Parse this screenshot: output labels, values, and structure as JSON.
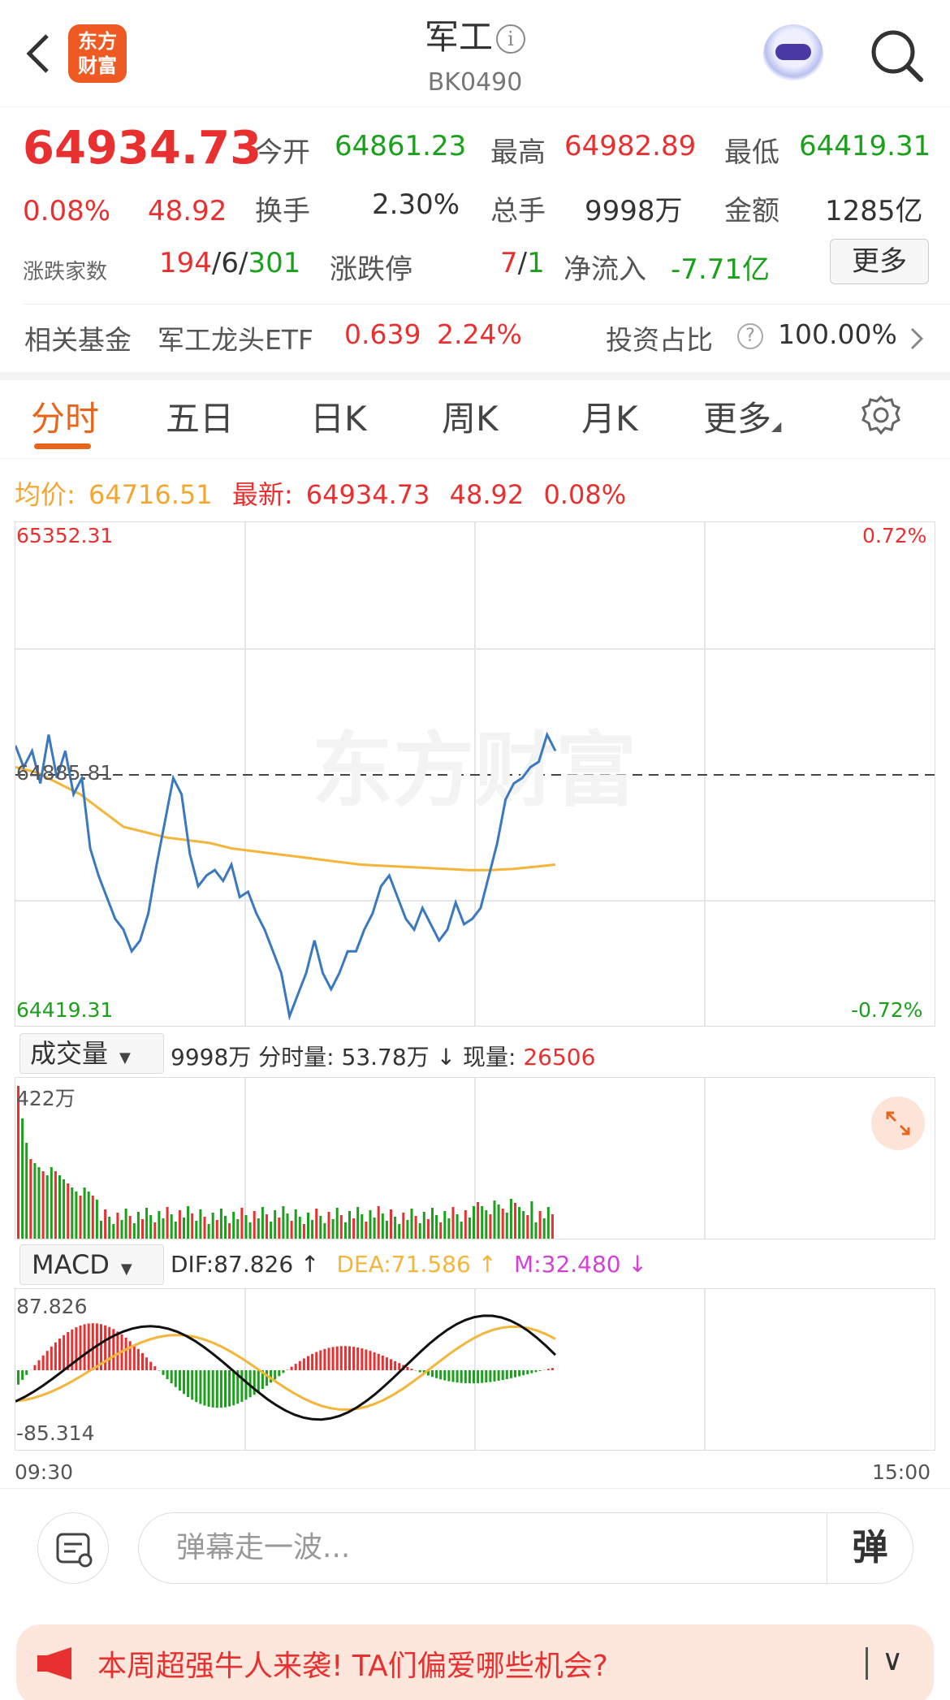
{
  "header": {
    "title": "军工",
    "code": "BK0490",
    "logo_line1": "东方",
    "logo_line2": "财富"
  },
  "quote": {
    "price": "64934.73",
    "change_pct": "0.08%",
    "change": "48.92",
    "open_label": "今开",
    "open": "64861.23",
    "high_label": "最高",
    "high": "64982.89",
    "low_label": "最低",
    "low": "64419.31",
    "turnover_label": "换手",
    "turnover": "2.30%",
    "volume_label": "总手",
    "volume": "9998万",
    "amount_label": "金额",
    "amount": "1285亿",
    "breadth_label": "涨跌家数",
    "up_count": "194",
    "flat_count": "6",
    "down_count": "301",
    "limit_label": "涨跌停",
    "limit_up": "7",
    "limit_down": "1",
    "netflow_label": "净流入",
    "netflow": "-7.71亿",
    "more_label": "更多"
  },
  "fund": {
    "label": "相关基金",
    "name": "军工龙头ETF",
    "price": "0.639",
    "pct": "2.24%",
    "ratio_label": "投资占比",
    "ratio": "100.00%"
  },
  "tabs": [
    "分时",
    "五日",
    "日K",
    "周K",
    "月K",
    "更多"
  ],
  "avg_line": {
    "avg_label": "均价:",
    "avg": "64716.51",
    "latest_label": "最新:",
    "latest": "64934.73",
    "change": "48.92",
    "pct": "0.08%"
  },
  "price_chart": {
    "max": "65352.31",
    "min": "64419.31",
    "max_pct": "0.72%",
    "min_pct": "-0.72%",
    "ref": "64885.81",
    "watermark": "东方财富"
  },
  "volume_header": {
    "selector": "成交量",
    "total": "9998万",
    "tick_label": "分时量:",
    "tick": "53.78万",
    "arrow": "↓",
    "now_label": "现量:",
    "now": "26506",
    "max": "422万"
  },
  "macd_header": {
    "selector": "MACD",
    "dif": "DIF:87.826 ↑",
    "dea": "DEA:71.586 ↑",
    "m": "M:32.480 ↓",
    "max": "87.826",
    "min": "-85.314"
  },
  "time_axis": {
    "start": "09:30",
    "end": "15:00"
  },
  "danmaku": {
    "placeholder": "弹幕走一波...",
    "send": "弹"
  },
  "banner": {
    "text": "本周超强牛人来袭! TA们偏爱哪些机会?"
  },
  "colors": {
    "up": "#e93030",
    "down": "#1aa01a",
    "accent": "#e8651c",
    "price_line": "#3a78c0",
    "avg_line": "#f3b53a",
    "macd_m": "#d43fd4"
  },
  "chart_data": {
    "type": "line",
    "series": [
      {
        "name": "最新",
        "values": [
          64940,
          64900,
          64930,
          64870,
          64960,
          64880,
          64930,
          64850,
          64880,
          64750,
          64700,
          64660,
          64620,
          64600,
          64560,
          64580,
          64630,
          64720,
          64800,
          64880,
          64850,
          64740,
          64680,
          64700,
          64710,
          64690,
          64720,
          64660,
          64670,
          64630,
          64600,
          64560,
          64520,
          64440,
          64480,
          64520,
          64580,
          64520,
          64490,
          64520,
          64560,
          64560,
          64600,
          64630,
          64680,
          64700,
          64660,
          64620,
          64600,
          64640,
          64610,
          64580,
          64600,
          64650,
          64610,
          64620,
          64640,
          64700,
          64760,
          64840,
          64870,
          64880,
          64900,
          64910,
          64960,
          64930
        ]
      },
      {
        "name": "均价",
        "values": [
          64900,
          64890,
          64870,
          64850,
          64820,
          64790,
          64780,
          64770,
          64765,
          64760,
          64750,
          64745,
          64740,
          64735,
          64730,
          64725,
          64720,
          64718,
          64716,
          64714,
          64712,
          64710,
          64710,
          64712,
          64716,
          64720
        ]
      }
    ],
    "ylim": [
      64419.31,
      65352.31
    ],
    "xlim": [
      "09:30",
      "15:00"
    ],
    "volume": {
      "max": "422万",
      "unit": "手"
    },
    "macd": {
      "dif": 87.826,
      "dea": 71.586,
      "m": 32.48,
      "ylim": [
        -85.314,
        87.826
      ]
    }
  }
}
